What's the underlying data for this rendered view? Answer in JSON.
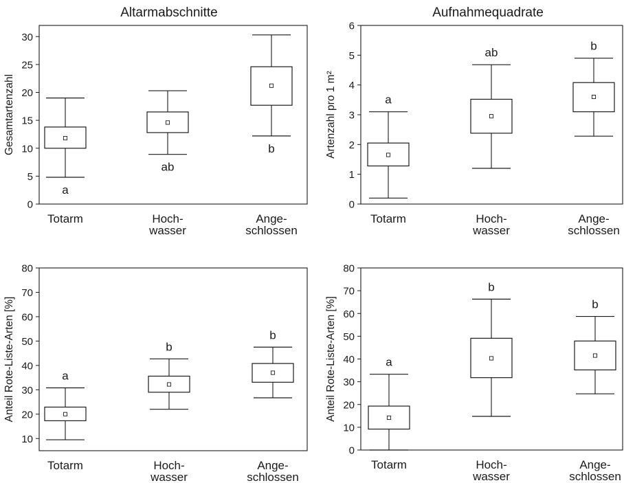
{
  "headers": {
    "left": "Altarmabschnitte",
    "right": "Aufnahmequadrate"
  },
  "chart_data": [
    {
      "type": "box",
      "title": "",
      "ylabel": "Gesamtartenzahl",
      "ylim": [
        0,
        32
      ],
      "yticks": [
        0,
        5,
        10,
        15,
        20,
        25,
        30
      ],
      "categories": [
        [
          "Totarm"
        ],
        [
          "Hoch-",
          "wasser"
        ],
        [
          "Ange-",
          "schlossen"
        ]
      ],
      "boxes": [
        {
          "whisker_low": 4.8,
          "q1": 10.0,
          "mean": 11.8,
          "q3": 13.8,
          "whisker_high": 19.0,
          "letter": "a"
        },
        {
          "whisker_low": 8.9,
          "q1": 12.8,
          "mean": 14.6,
          "q3": 16.5,
          "whisker_high": 20.3,
          "letter": "ab"
        },
        {
          "whisker_low": 12.2,
          "q1": 17.7,
          "mean": 21.2,
          "q3": 24.6,
          "whisker_high": 30.3,
          "letter": "b"
        }
      ]
    },
    {
      "type": "box",
      "title": "",
      "ylabel": "Artenzahl pro 1 m²",
      "ylim": [
        0,
        6
      ],
      "yticks": [
        0,
        1,
        2,
        3,
        4,
        5,
        6
      ],
      "categories": [
        [
          "Totarm"
        ],
        [
          "Hoch-",
          "wasser"
        ],
        [
          "Ange-",
          "schlossen"
        ]
      ],
      "boxes": [
        {
          "whisker_low": 0.2,
          "q1": 1.28,
          "mean": 1.65,
          "q3": 2.05,
          "whisker_high": 3.1,
          "letter": "a"
        },
        {
          "whisker_low": 1.2,
          "q1": 2.38,
          "mean": 2.95,
          "q3": 3.52,
          "whisker_high": 4.68,
          "letter": "ab"
        },
        {
          "whisker_low": 2.28,
          "q1": 3.1,
          "mean": 3.6,
          "q3": 4.08,
          "whisker_high": 4.9,
          "letter": "b"
        }
      ]
    },
    {
      "type": "box",
      "title": "",
      "ylabel": "Anteil Rote-Liste-Arten [%]",
      "ylim": [
        5,
        80
      ],
      "yticks": [
        10,
        20,
        30,
        40,
        50,
        60,
        70,
        80
      ],
      "categories": [
        [
          "Totarm"
        ],
        [
          "Hoch-",
          "wasser"
        ],
        [
          "Ange-",
          "schlossen"
        ]
      ],
      "boxes": [
        {
          "whisker_low": 9.5,
          "q1": 17.3,
          "mean": 20.0,
          "q3": 22.9,
          "whisker_high": 30.8,
          "letter": "a"
        },
        {
          "whisker_low": 22.0,
          "q1": 29.0,
          "mean": 32.2,
          "q3": 35.6,
          "whisker_high": 42.7,
          "letter": "b"
        },
        {
          "whisker_low": 26.7,
          "q1": 33.1,
          "mean": 37.0,
          "q3": 40.8,
          "whisker_high": 47.5,
          "letter": "b"
        }
      ]
    },
    {
      "type": "box",
      "title": "",
      "ylabel": "Anteil Rote-Liste-Arten [%]",
      "ylim": [
        0,
        80
      ],
      "yticks": [
        0,
        10,
        20,
        30,
        40,
        50,
        60,
        70,
        80
      ],
      "categories": [
        [
          "Totarm"
        ],
        [
          "Hoch-",
          "wasser"
        ],
        [
          "Ange-",
          "schlossen"
        ]
      ],
      "boxes": [
        {
          "whisker_low": 0.0,
          "q1": 9.2,
          "mean": 14.2,
          "q3": 19.3,
          "whisker_high": 33.3,
          "letter": "a"
        },
        {
          "whisker_low": 14.8,
          "q1": 31.8,
          "mean": 40.3,
          "q3": 49.1,
          "whisker_high": 66.3,
          "letter": "b"
        },
        {
          "whisker_low": 24.7,
          "q1": 35.2,
          "mean": 41.5,
          "q3": 47.9,
          "whisker_high": 58.7,
          "letter": "b"
        }
      ]
    }
  ]
}
